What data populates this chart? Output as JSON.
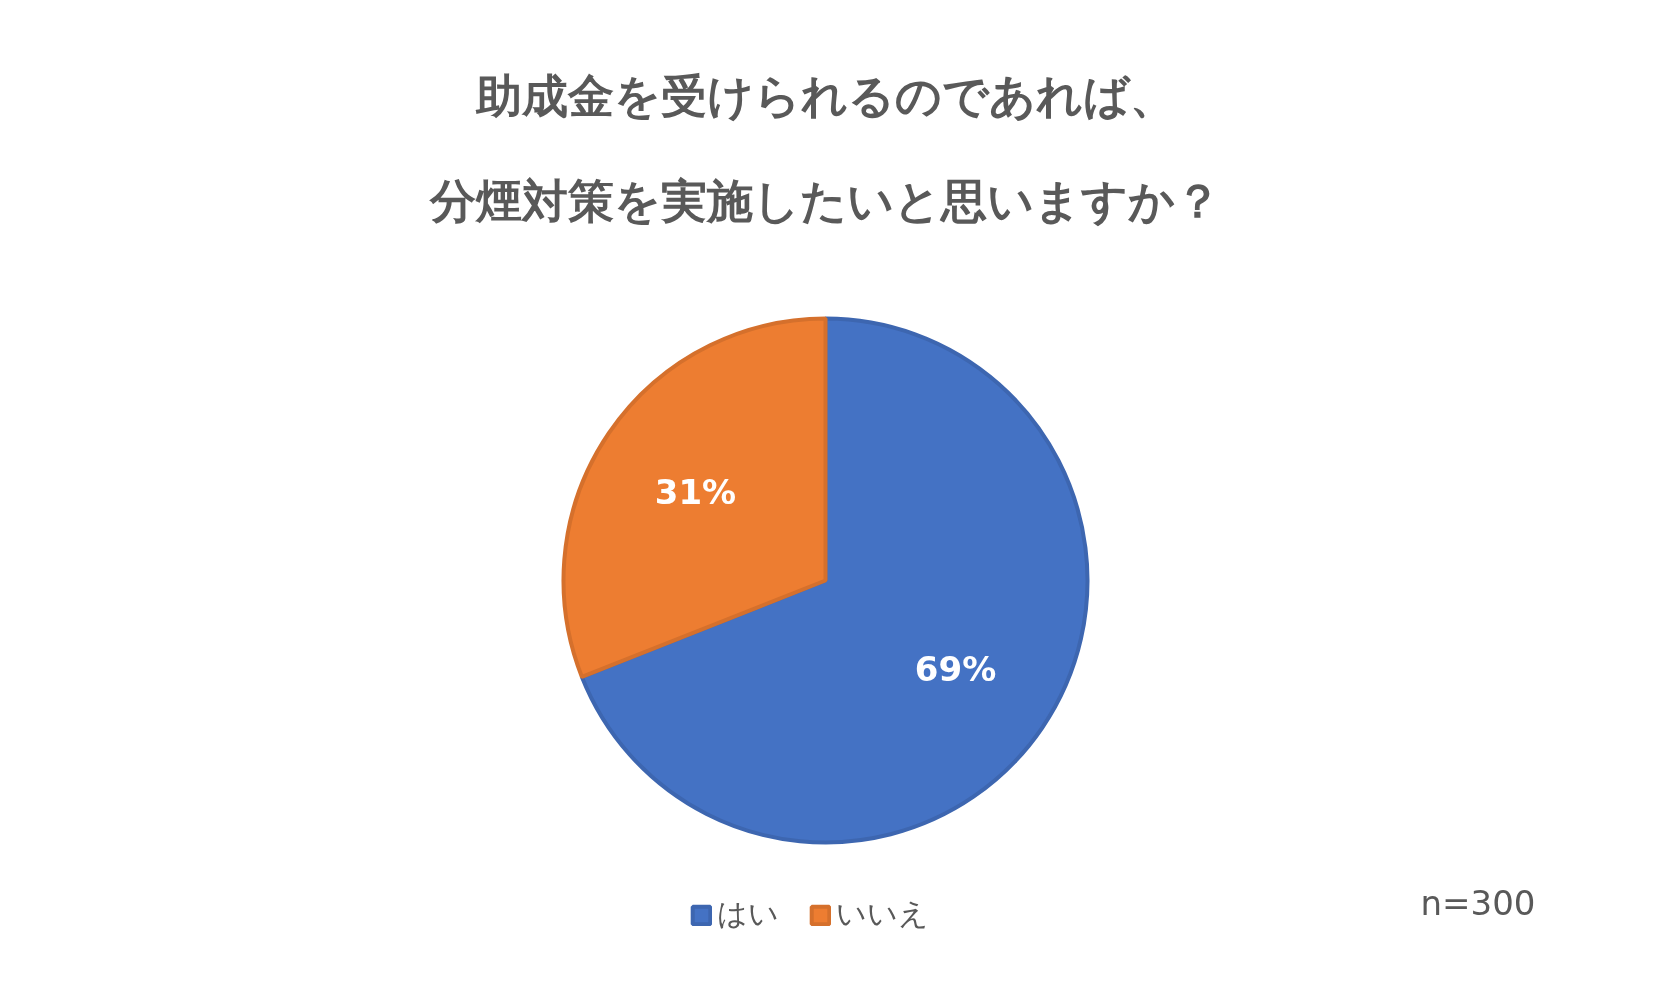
{
  "chart_data": {
    "type": "pie",
    "title": "助成金を受けられるのであれば、分煙対策を実施したいと思いますか？",
    "categories": [
      "はい",
      "いいえ"
    ],
    "values": [
      69,
      31
    ],
    "colors": [
      "#4472c4",
      "#ed7d31"
    ],
    "value_labels": [
      "69%",
      "31%"
    ],
    "legend": "bottom",
    "annotations": [
      "n=300"
    ]
  }
}
